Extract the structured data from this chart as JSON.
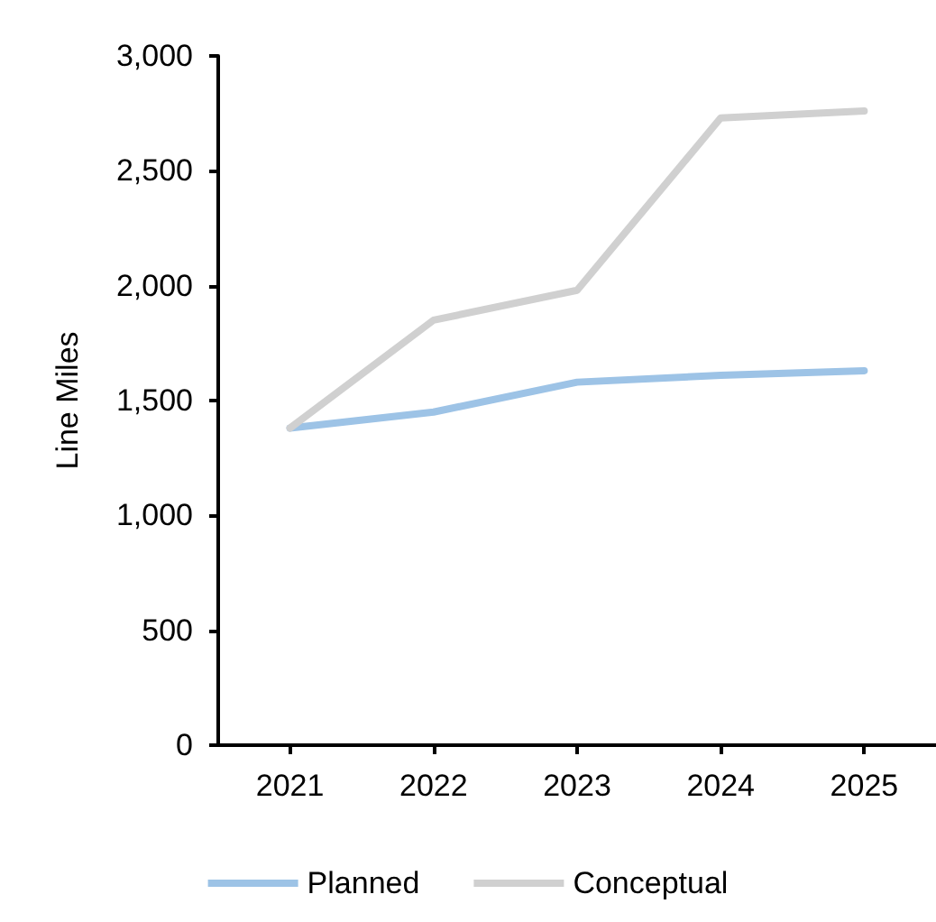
{
  "chart_data": {
    "type": "line",
    "ylabel": "Line Miles",
    "categories": [
      "2021",
      "2022",
      "2023",
      "2024",
      "2025"
    ],
    "series": [
      {
        "name": "Planned",
        "color": "#9dc3e6",
        "values": [
          1380,
          1450,
          1580,
          1610,
          1630
        ]
      },
      {
        "name": "Conceptual",
        "color": "#d0d0d0",
        "values": [
          1380,
          1850,
          1980,
          2730,
          2760
        ]
      }
    ],
    "ylim": [
      0,
      3000
    ],
    "yticks": [
      0,
      500,
      {
        "value": 1000,
        "label": "1,000"
      },
      {
        "value": 1500,
        "label": "1,500"
      },
      {
        "value": 2000,
        "label": "2,000"
      },
      {
        "value": 2500,
        "label": "2,500"
      },
      {
        "value": 3000,
        "label": "3,000"
      }
    ],
    "grid": false,
    "legend": "bottom",
    "marker": "none",
    "line_style": "solid"
  }
}
